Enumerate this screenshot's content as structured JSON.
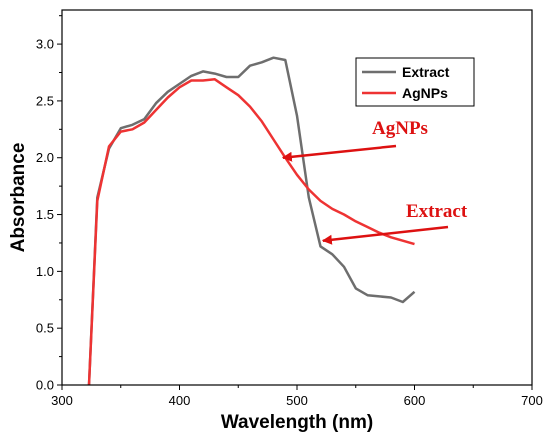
{
  "chart_data": {
    "type": "line",
    "xlabel": "Wavelength (nm)",
    "ylabel": "Absorbance",
    "xlim": [
      300,
      700
    ],
    "ylim": [
      0,
      3.3
    ],
    "xticks": [
      "300",
      "400",
      "500",
      "600",
      "700"
    ],
    "yticks": [
      "0.0",
      "0.5",
      "1.0",
      "1.5",
      "2.0",
      "2.5",
      "3.0"
    ],
    "xtick_values": [
      300,
      400,
      500,
      600,
      700
    ],
    "ytick_values": [
      0,
      0.5,
      1.0,
      1.5,
      2.0,
      2.5,
      3.0
    ],
    "grid": false,
    "legend_position": "top-right",
    "series": [
      {
        "name": "Extract",
        "color": "#6e6e6e",
        "points": [
          [
            323,
            0.0
          ],
          [
            330,
            1.65
          ],
          [
            340,
            2.08
          ],
          [
            350,
            2.26
          ],
          [
            360,
            2.29
          ],
          [
            370,
            2.34
          ],
          [
            380,
            2.48
          ],
          [
            390,
            2.58
          ],
          [
            400,
            2.65
          ],
          [
            410,
            2.72
          ],
          [
            420,
            2.76
          ],
          [
            430,
            2.74
          ],
          [
            440,
            2.71
          ],
          [
            450,
            2.71
          ],
          [
            460,
            2.81
          ],
          [
            470,
            2.84
          ],
          [
            480,
            2.88
          ],
          [
            490,
            2.86
          ],
          [
            500,
            2.37
          ],
          [
            510,
            1.65
          ],
          [
            520,
            1.22
          ],
          [
            530,
            1.15
          ],
          [
            540,
            1.04
          ],
          [
            550,
            0.85
          ],
          [
            560,
            0.79
          ],
          [
            570,
            0.78
          ],
          [
            580,
            0.77
          ],
          [
            590,
            0.73
          ],
          [
            600,
            0.82
          ]
        ]
      },
      {
        "name": "AgNPs",
        "color": "#ee3333",
        "points": [
          [
            323,
            0.0
          ],
          [
            330,
            1.62
          ],
          [
            340,
            2.1
          ],
          [
            350,
            2.23
          ],
          [
            360,
            2.25
          ],
          [
            370,
            2.31
          ],
          [
            380,
            2.42
          ],
          [
            390,
            2.53
          ],
          [
            400,
            2.62
          ],
          [
            410,
            2.68
          ],
          [
            420,
            2.68
          ],
          [
            430,
            2.69
          ],
          [
            440,
            2.62
          ],
          [
            450,
            2.55
          ],
          [
            460,
            2.45
          ],
          [
            470,
            2.32
          ],
          [
            480,
            2.16
          ],
          [
            490,
            2.0
          ],
          [
            500,
            1.85
          ],
          [
            510,
            1.72
          ],
          [
            520,
            1.62
          ],
          [
            530,
            1.55
          ],
          [
            540,
            1.5
          ],
          [
            550,
            1.44
          ],
          [
            560,
            1.39
          ],
          [
            570,
            1.34
          ],
          [
            580,
            1.3
          ],
          [
            590,
            1.27
          ],
          [
            600,
            1.24
          ]
        ]
      }
    ],
    "annotations": [
      {
        "text": "AgNPs",
        "color": "#dd1111",
        "arrow_to": [
          488,
          2.0
        ]
      },
      {
        "text": "Extract",
        "color": "#dd1111",
        "arrow_to": [
          522,
          1.27
        ]
      }
    ]
  }
}
